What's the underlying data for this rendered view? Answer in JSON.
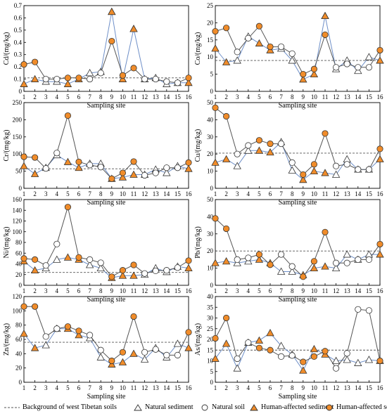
{
  "chart_data": [
    {
      "type": "line",
      "ylabel": "Cd/(mg/kg)",
      "ylim": [
        0,
        0.7
      ],
      "yticks": [
        "0",
        "0.1",
        "0.2",
        "0.3",
        "0.4",
        "0.5",
        "0.6",
        "0.7"
      ],
      "x": [
        1,
        2,
        3,
        4,
        5,
        6,
        7,
        8,
        9,
        10,
        11,
        12,
        13,
        14,
        15,
        16
      ],
      "background": 0.11,
      "series": [
        {
          "name": "Natural sediment",
          "values": [
            null,
            null,
            0.08,
            0.08,
            null,
            null,
            0.15,
            0.16,
            0.65,
            0.1,
            0.51,
            0.1,
            0.11,
            0.06,
            0.07,
            null
          ]
        },
        {
          "name": "Natural soil",
          "values": [
            null,
            null,
            0.1,
            0.1,
            null,
            null,
            0.1,
            0.15,
            null,
            0.13,
            null,
            0.1,
            0.1,
            0.08,
            0.07,
            null
          ]
        },
        {
          "name": "Human-affected sediment",
          "values": [
            0.06,
            0.1,
            null,
            null,
            0.06,
            0.1,
            null,
            null,
            0.65,
            0.1,
            0.51,
            null,
            null,
            null,
            null,
            0.07
          ]
        },
        {
          "name": "Human-affected soil",
          "values": [
            0.22,
            0.24,
            null,
            null,
            0.11,
            0.11,
            null,
            null,
            0.41,
            0.13,
            0.19,
            null,
            null,
            null,
            null,
            0.11
          ]
        }
      ]
    },
    {
      "type": "line",
      "ylabel": "Co/(mg/kg)",
      "ylim": [
        0,
        25
      ],
      "yticks": [
        "0",
        "5",
        "10",
        "15",
        "20",
        "25"
      ],
      "x": [
        1,
        2,
        3,
        4,
        5,
        6,
        7,
        8,
        9,
        10,
        11,
        12,
        13,
        14,
        15,
        16
      ],
      "background": 9,
      "series": [
        {
          "name": "Natural sediment",
          "values": [
            null,
            null,
            9,
            16,
            null,
            null,
            12.5,
            9,
            null,
            null,
            22,
            6.5,
            9,
            6,
            10,
            null
          ]
        },
        {
          "name": "Natural soil",
          "values": [
            null,
            null,
            11.5,
            15.5,
            null,
            null,
            13,
            11,
            null,
            null,
            null,
            7,
            8,
            7,
            7,
            null
          ]
        },
        {
          "name": "Human-affected sediment",
          "values": [
            12.5,
            8.5,
            null,
            null,
            14,
            12,
            null,
            null,
            3.5,
            5,
            22,
            null,
            null,
            null,
            null,
            9
          ]
        },
        {
          "name": "Human-affected soil",
          "values": [
            17.5,
            18.5,
            null,
            null,
            19,
            13,
            null,
            null,
            5,
            6.5,
            16.5,
            null,
            null,
            null,
            null,
            12
          ]
        }
      ]
    },
    {
      "type": "line",
      "ylabel": "Cr/(mg/kg)",
      "ylim": [
        0,
        250
      ],
      "yticks": [
        "0",
        "50",
        "100",
        "150",
        "200",
        "250"
      ],
      "x": [
        1,
        2,
        3,
        4,
        5,
        6,
        7,
        8,
        9,
        10,
        11,
        12,
        13,
        14,
        15,
        16
      ],
      "background": 57,
      "series": [
        {
          "name": "Natural sediment",
          "values": [
            null,
            null,
            60,
            97,
            null,
            null,
            72,
            72,
            null,
            null,
            null,
            40,
            55,
            45,
            65,
            null
          ]
        },
        {
          "name": "Natural soil",
          "values": [
            null,
            null,
            58,
            103,
            null,
            null,
            68,
            62,
            null,
            null,
            null,
            38,
            45,
            60,
            60,
            null
          ]
        },
        {
          "name": "Human-affected sediment",
          "values": [
            65,
            42,
            null,
            null,
            77,
            60,
            null,
            null,
            28,
            32,
            40,
            null,
            null,
            null,
            null,
            57
          ]
        },
        {
          "name": "Human-affected soil",
          "values": [
            92,
            90,
            null,
            null,
            212,
            77,
            null,
            null,
            28,
            45,
            78,
            null,
            null,
            null,
            null,
            75
          ]
        }
      ]
    },
    {
      "type": "line",
      "ylabel": "Cu/(mg/kg)",
      "ylim": [
        0,
        50
      ],
      "yticks": [
        "0",
        "10",
        "20",
        "30",
        "40",
        "50"
      ],
      "x": [
        1,
        2,
        3,
        4,
        5,
        6,
        7,
        8,
        9,
        10,
        11,
        12,
        13,
        14,
        15,
        16
      ],
      "background": 20.5,
      "series": [
        {
          "name": "Natural sediment",
          "values": [
            null,
            null,
            13,
            22,
            null,
            null,
            27,
            10.5,
            null,
            null,
            null,
            8,
            17,
            11,
            11,
            null
          ]
        },
        {
          "name": "Natural soil",
          "values": [
            null,
            null,
            20,
            25,
            null,
            null,
            26,
            15,
            null,
            null,
            null,
            13,
            14,
            11,
            11,
            null
          ]
        },
        {
          "name": "Human-affected sediment",
          "values": [
            15,
            17,
            null,
            null,
            22,
            21,
            null,
            null,
            5,
            10,
            9,
            null,
            null,
            null,
            null,
            17
          ]
        },
        {
          "name": "Human-affected soil",
          "values": [
            47,
            42,
            null,
            null,
            28,
            26,
            null,
            null,
            8,
            14,
            32,
            null,
            null,
            null,
            null,
            23
          ]
        }
      ]
    },
    {
      "type": "line",
      "ylabel": "Ni/(mg/kg)",
      "ylim": [
        0,
        160
      ],
      "yticks": [
        "0",
        "20",
        "40",
        "60",
        "80",
        "100",
        "120",
        "140",
        "160"
      ],
      "x": [
        1,
        2,
        3,
        4,
        5,
        6,
        7,
        8,
        9,
        10,
        11,
        12,
        13,
        14,
        15,
        16
      ],
      "background": 24,
      "series": [
        {
          "name": "Natural sediment",
          "values": [
            null,
            null,
            32,
            48,
            null,
            null,
            38,
            32,
            null,
            null,
            null,
            20,
            32,
            25,
            35,
            null
          ]
        },
        {
          "name": "Natural soil",
          "values": [
            null,
            null,
            37,
            77,
            null,
            null,
            48,
            42,
            null,
            null,
            null,
            22,
            27,
            28,
            33,
            null
          ]
        },
        {
          "name": "Human-affected sediment",
          "values": [
            45,
            28,
            null,
            null,
            52,
            48,
            null,
            null,
            14,
            18,
            18,
            null,
            null,
            null,
            null,
            32
          ]
        },
        {
          "name": "Human-affected soil",
          "values": [
            50,
            48,
            null,
            null,
            146,
            52,
            null,
            null,
            16,
            28,
            38,
            null,
            null,
            null,
            null,
            46
          ]
        }
      ]
    },
    {
      "type": "line",
      "ylabel": "Pb/(mg/kg)",
      "ylim": [
        0,
        50
      ],
      "yticks": [
        "0",
        "10",
        "20",
        "30",
        "40",
        "50"
      ],
      "x": [
        1,
        2,
        3,
        4,
        5,
        6,
        7,
        8,
        9,
        10,
        11,
        12,
        13,
        14,
        15,
        16
      ],
      "background": 20,
      "series": [
        {
          "name": "Natural sediment",
          "values": [
            null,
            null,
            13,
            14,
            null,
            null,
            8,
            8,
            null,
            null,
            null,
            10,
            18,
            15,
            18,
            null
          ]
        },
        {
          "name": "Natural soil",
          "values": [
            null,
            null,
            15,
            16,
            null,
            null,
            18,
            11,
            null,
            null,
            null,
            13,
            13,
            15,
            15,
            null
          ]
        },
        {
          "name": "Human-affected sediment",
          "values": [
            13,
            14,
            null,
            null,
            15,
            13,
            null,
            null,
            6,
            10,
            11,
            null,
            null,
            null,
            null,
            18
          ]
        },
        {
          "name": "Human-affected soil",
          "values": [
            39,
            33,
            null,
            null,
            18,
            12,
            null,
            null,
            5,
            14,
            31,
            null,
            null,
            null,
            null,
            24
          ]
        }
      ]
    },
    {
      "type": "line",
      "ylabel": "Zn/(mg/kg)",
      "ylim": [
        0,
        120
      ],
      "yticks": [
        "0",
        "20",
        "40",
        "60",
        "80",
        "100",
        "120"
      ],
      "x": [
        1,
        2,
        3,
        4,
        5,
        6,
        7,
        8,
        9,
        10,
        11,
        12,
        13,
        14,
        15,
        16
      ],
      "background": 56,
      "series": [
        {
          "name": "Natural sediment",
          "values": [
            null,
            null,
            52,
            75,
            null,
            null,
            62,
            35,
            null,
            null,
            null,
            32,
            48,
            35,
            54,
            null
          ]
        },
        {
          "name": "Natural soil",
          "values": [
            null,
            null,
            64,
            75,
            null,
            null,
            66,
            45,
            null,
            null,
            null,
            42,
            46,
            38,
            38,
            null
          ]
        },
        {
          "name": "Human-affected sediment",
          "values": [
            68,
            48,
            null,
            null,
            75,
            66,
            null,
            null,
            25,
            28,
            40,
            null,
            null,
            null,
            null,
            48
          ]
        },
        {
          "name": "Human-affected soil",
          "values": [
            106,
            106,
            null,
            null,
            78,
            72,
            null,
            null,
            30,
            42,
            92,
            null,
            null,
            null,
            null,
            70
          ]
        }
      ]
    },
    {
      "type": "line",
      "ylabel": "As/(mg/kg)",
      "ylim": [
        0,
        40
      ],
      "yticks": [
        "0",
        "5",
        "10",
        "15",
        "20",
        "25",
        "30",
        "35",
        "40"
      ],
      "x": [
        1,
        2,
        3,
        4,
        5,
        6,
        7,
        8,
        9,
        10,
        11,
        12,
        13,
        14,
        15,
        16
      ],
      "background": 15,
      "series": [
        {
          "name": "Natural sediment",
          "values": [
            null,
            null,
            6.5,
            18.5,
            null,
            null,
            17,
            13,
            null,
            null,
            null,
            10,
            10.5,
            9,
            10.5,
            null
          ]
        },
        {
          "name": "Natural soil",
          "values": [
            null,
            null,
            11,
            18.5,
            null,
            null,
            12,
            12.5,
            null,
            null,
            null,
            6.5,
            13.5,
            34,
            33.5,
            null
          ]
        },
        {
          "name": "Human-affected sediment",
          "values": [
            11,
            18,
            null,
            null,
            19.5,
            23,
            null,
            null,
            5.5,
            15.5,
            13,
            null,
            null,
            null,
            null,
            10
          ]
        },
        {
          "name": "Human-affected soil",
          "values": [
            20.5,
            30,
            null,
            null,
            16,
            15,
            null,
            null,
            9.5,
            12,
            14.5,
            null,
            null,
            null,
            null,
            10
          ]
        }
      ]
    }
  ],
  "xlabel": "Sampling site",
  "legend": {
    "background": "Background of west Tibetan soils",
    "natural_sediment": "Natural sediment",
    "natural_soil": "Natural soil",
    "human_sediment": "Human-affected sediment",
    "human_soil": "Human-affected soil"
  },
  "colors": {
    "natural_line": "#6e8fc8",
    "human_line": "#555555",
    "orange": "#f08c2a",
    "background_line": "#555555"
  }
}
